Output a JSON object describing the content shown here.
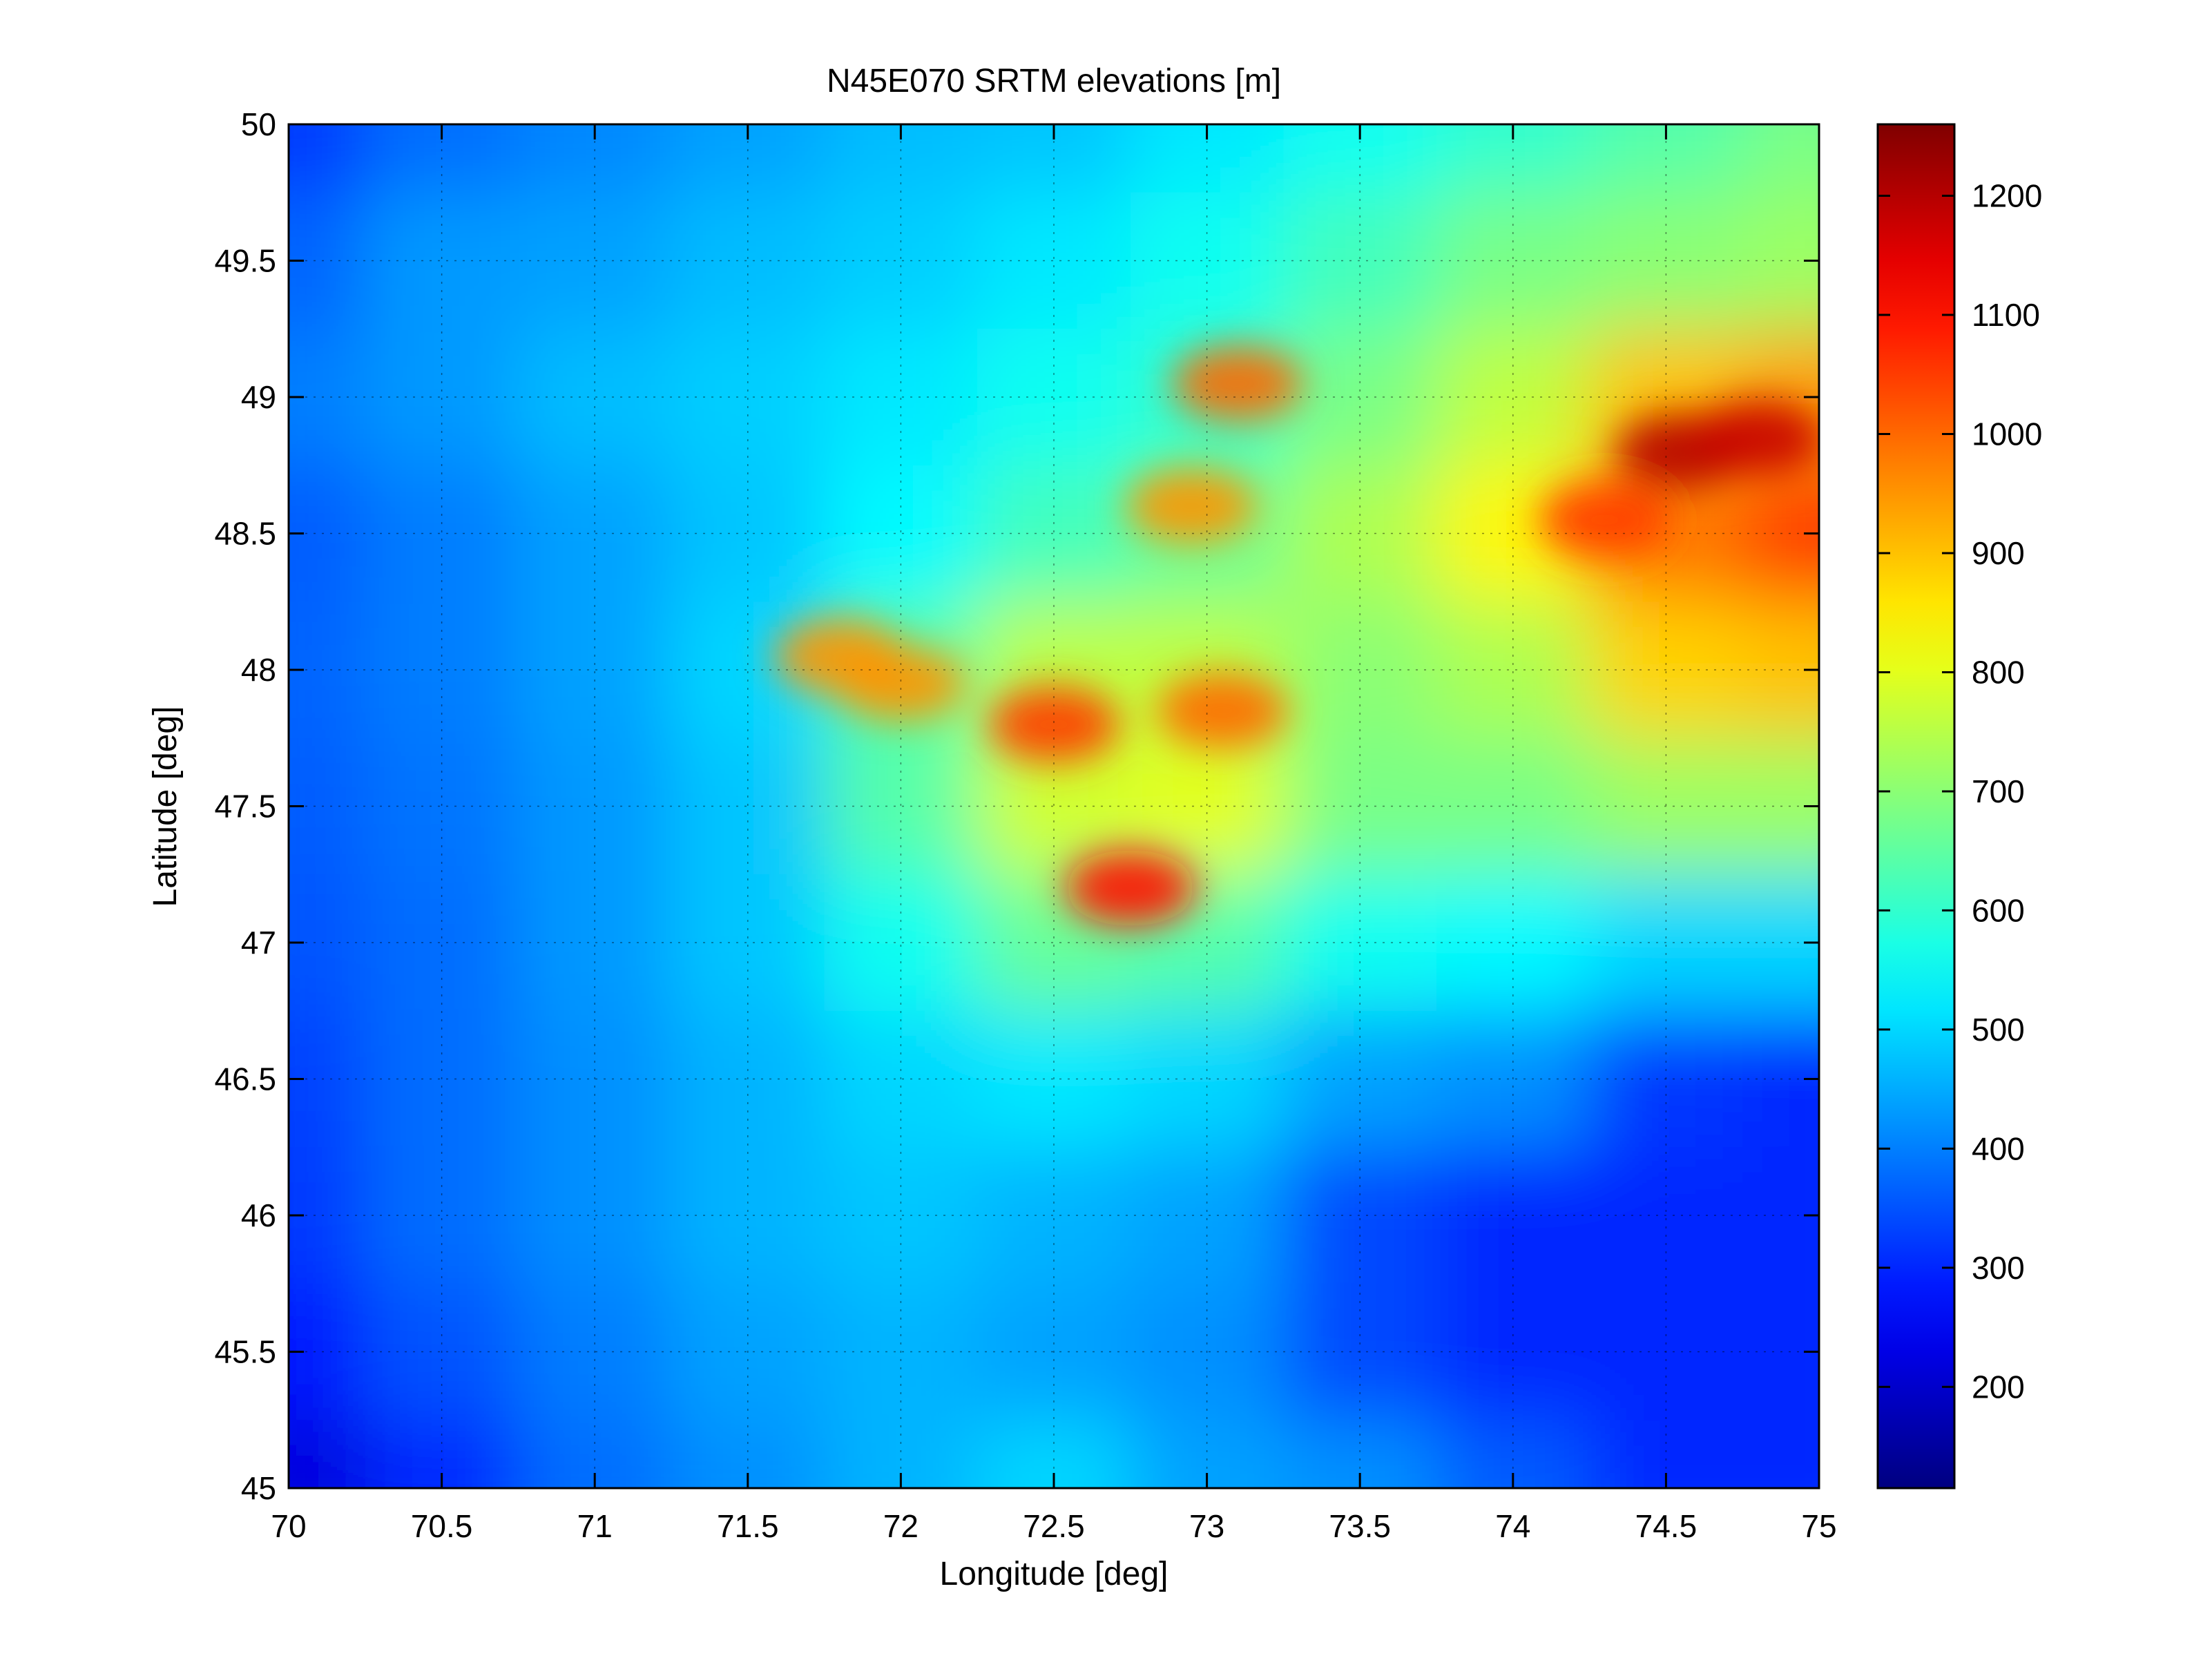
{
  "chart_data": {
    "type": "heatmap",
    "title": "N45E070 SRTM elevations [m]",
    "xlabel": "Longitude [deg]",
    "ylabel": "Latitude [deg]",
    "xlim": [
      70,
      75
    ],
    "ylim": [
      45,
      50
    ],
    "xticks": [
      "70",
      "70.5",
      "71",
      "71.5",
      "72",
      "72.5",
      "73",
      "73.5",
      "74",
      "74.5",
      "75"
    ],
    "yticks": [
      "45",
      "45.5",
      "46",
      "46.5",
      "47",
      "47.5",
      "48",
      "48.5",
      "49",
      "49.5",
      "50"
    ],
    "grid": true,
    "colormap": "jet",
    "colorbar": {
      "range": [
        115,
        1260
      ],
      "ticks": [
        "200",
        "300",
        "400",
        "500",
        "600",
        "700",
        "800",
        "900",
        "1000",
        "1100",
        "1200"
      ]
    },
    "grid_lon": [
      70,
      70.5,
      71,
      71.5,
      72,
      72.5,
      73,
      73.5,
      74,
      74.5,
      75
    ],
    "grid_lat": [
      50,
      49.5,
      49,
      48.5,
      48,
      47.5,
      47,
      46.5,
      46,
      45.5,
      45
    ],
    "approx_elevation_grid": [
      [
        320,
        380,
        410,
        440,
        470,
        480,
        520,
        560,
        600,
        640,
        680
      ],
      [
        370,
        430,
        440,
        470,
        490,
        520,
        560,
        620,
        680,
        700,
        720
      ],
      [
        400,
        430,
        470,
        490,
        520,
        560,
        600,
        680,
        760,
        900,
        940
      ],
      [
        360,
        400,
        440,
        480,
        540,
        620,
        660,
        740,
        840,
        980,
        1050
      ],
      [
        370,
        400,
        440,
        500,
        640,
        760,
        760,
        700,
        740,
        880,
        900
      ],
      [
        360,
        390,
        430,
        480,
        640,
        780,
        800,
        680,
        680,
        720,
        720
      ],
      [
        350,
        380,
        430,
        480,
        560,
        660,
        640,
        560,
        540,
        500,
        500
      ],
      [
        330,
        380,
        420,
        460,
        500,
        520,
        500,
        440,
        420,
        320,
        300
      ],
      [
        320,
        380,
        420,
        460,
        480,
        460,
        440,
        340,
        300,
        300,
        300
      ],
      [
        280,
        350,
        400,
        440,
        460,
        440,
        420,
        340,
        300,
        300,
        300
      ],
      [
        220,
        300,
        380,
        420,
        460,
        500,
        440,
        420,
        360,
        300,
        300
      ]
    ],
    "peaks": [
      {
        "lon": 74.55,
        "lat": 48.8,
        "elev": 1200
      },
      {
        "lon": 74.8,
        "lat": 48.85,
        "elev": 1180
      },
      {
        "lon": 74.3,
        "lat": 48.55,
        "elev": 1050
      },
      {
        "lon": 72.5,
        "lat": 47.8,
        "elev": 1050
      },
      {
        "lon": 73.05,
        "lat": 47.85,
        "elev": 1000
      },
      {
        "lon": 72.75,
        "lat": 47.2,
        "elev": 1100
      },
      {
        "lon": 72.0,
        "lat": 47.95,
        "elev": 950
      },
      {
        "lon": 73.1,
        "lat": 49.05,
        "elev": 1000
      },
      {
        "lon": 71.8,
        "lat": 48.05,
        "elev": 950
      },
      {
        "lon": 72.95,
        "lat": 48.6,
        "elev": 950
      }
    ]
  }
}
